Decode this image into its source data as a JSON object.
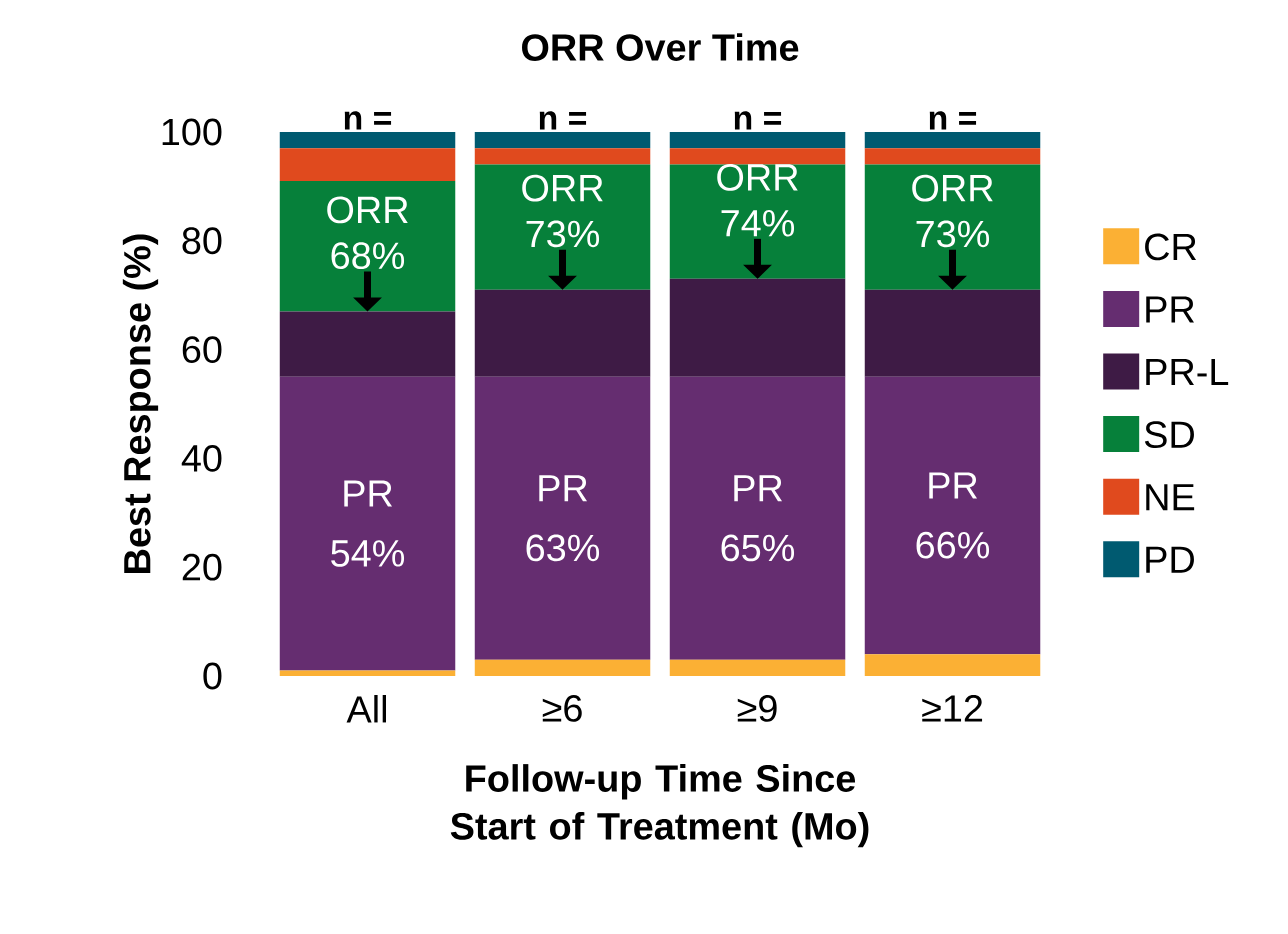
{
  "chart_data": {
    "type": "bar",
    "stacked": true,
    "title": "ORR Over Time",
    "categories": [
      "All",
      "≥6",
      "≥9",
      "≥12"
    ],
    "series": [
      {
        "name": "CR",
        "color": "#fbb034",
        "values": [
          1,
          3,
          3,
          4
        ]
      },
      {
        "name": "PR",
        "color": "#652d70",
        "values": [
          54,
          52,
          52,
          51
        ]
      },
      {
        "name": "PR-L",
        "color": "#3e1b45",
        "values": [
          12,
          16,
          18,
          16
        ]
      },
      {
        "name": "SD",
        "color": "#06803a",
        "values": [
          24,
          23,
          21,
          23
        ]
      },
      {
        "name": "NE",
        "color": "#e04a1e",
        "values": [
          6,
          3,
          3,
          3
        ]
      },
      {
        "name": "PD",
        "color": "#005a70",
        "values": [
          3,
          3,
          3,
          3
        ]
      }
    ],
    "xlabel": "Follow-up Time Since Start of Treatment (Mo)",
    "ylabel": "Best Response (%)",
    "ylim": [
      0,
      100
    ],
    "yticks": [
      0,
      20,
      40,
      60,
      80,
      100
    ],
    "legend": "right",
    "annotations": [
      "n =",
      "n =",
      "n =",
      "n =",
      {
        "text": "ORR 68%",
        "x": "All",
        "y": 67
      },
      {
        "text": "ORR 73%",
        "x": "≥6",
        "y": 71
      },
      {
        "text": "ORR 74%",
        "x": "≥9",
        "y": 73
      },
      {
        "text": "ORR 73%",
        "x": "≥12",
        "y": 71
      },
      "PR 54%",
      "PR 63%",
      "PR 65%",
      "PR 66%"
    ]
  }
}
